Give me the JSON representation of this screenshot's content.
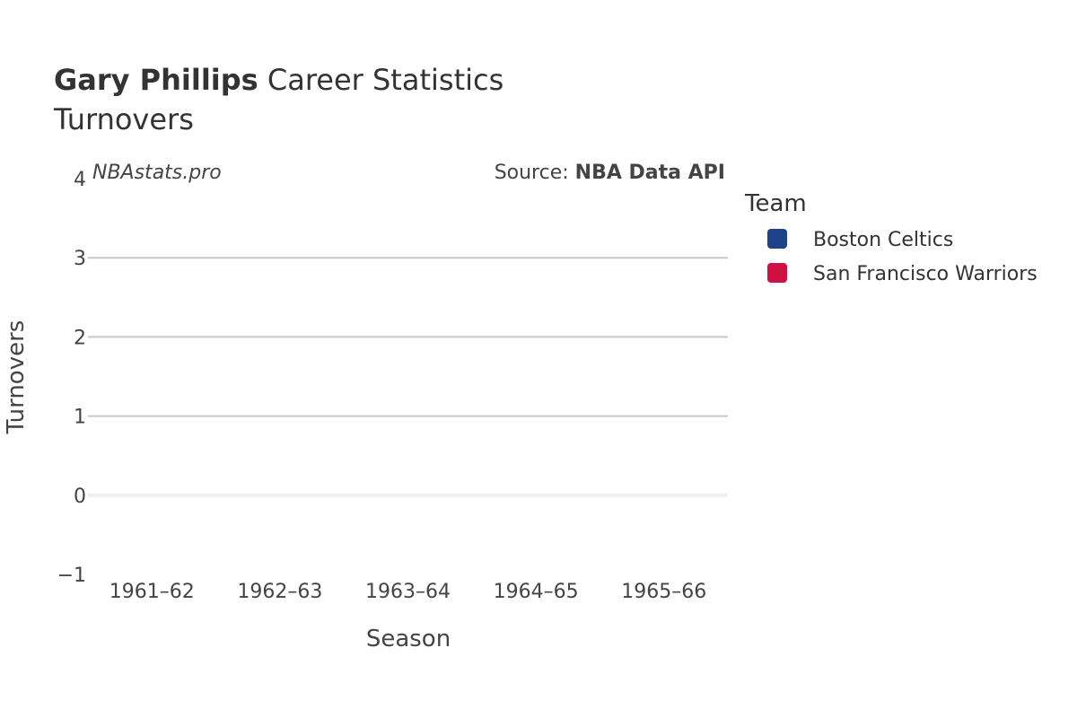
{
  "chart_data": {
    "type": "bar",
    "title": {
      "player": "Gary Phillips",
      "suffix": "Career Statistics",
      "subtitle": "Turnovers"
    },
    "watermark": "NBAstats.pro",
    "source": {
      "prefix": "Source: ",
      "name": "NBA Data API"
    },
    "xlabel": "Season",
    "ylabel": "Turnovers",
    "categories": [
      "1961–62",
      "1962–63",
      "1963–64",
      "1964–65",
      "1965–66"
    ],
    "ylim": [
      -1,
      4
    ],
    "yticks": [
      4,
      3,
      2,
      1,
      0,
      -1
    ],
    "ytick_labels": [
      "4",
      "3",
      "2",
      "1",
      "0",
      "−1"
    ],
    "grid": true,
    "legend": {
      "title": "Team",
      "placement": "right",
      "entries": [
        {
          "name": "Boston Celtics",
          "color": "#1d428a"
        },
        {
          "name": "San Francisco Warriors",
          "color": "#ce1141"
        }
      ]
    },
    "series": [
      {
        "name": "Boston Celtics",
        "values": [
          null,
          null,
          null,
          null,
          null
        ]
      },
      {
        "name": "San Francisco Warriors",
        "values": [
          null,
          null,
          null,
          null,
          null
        ]
      }
    ]
  },
  "colors": {
    "text": "#333333",
    "text_muted": "#444444",
    "grid": "#c8c8c8",
    "zeroline": "#efefef"
  }
}
